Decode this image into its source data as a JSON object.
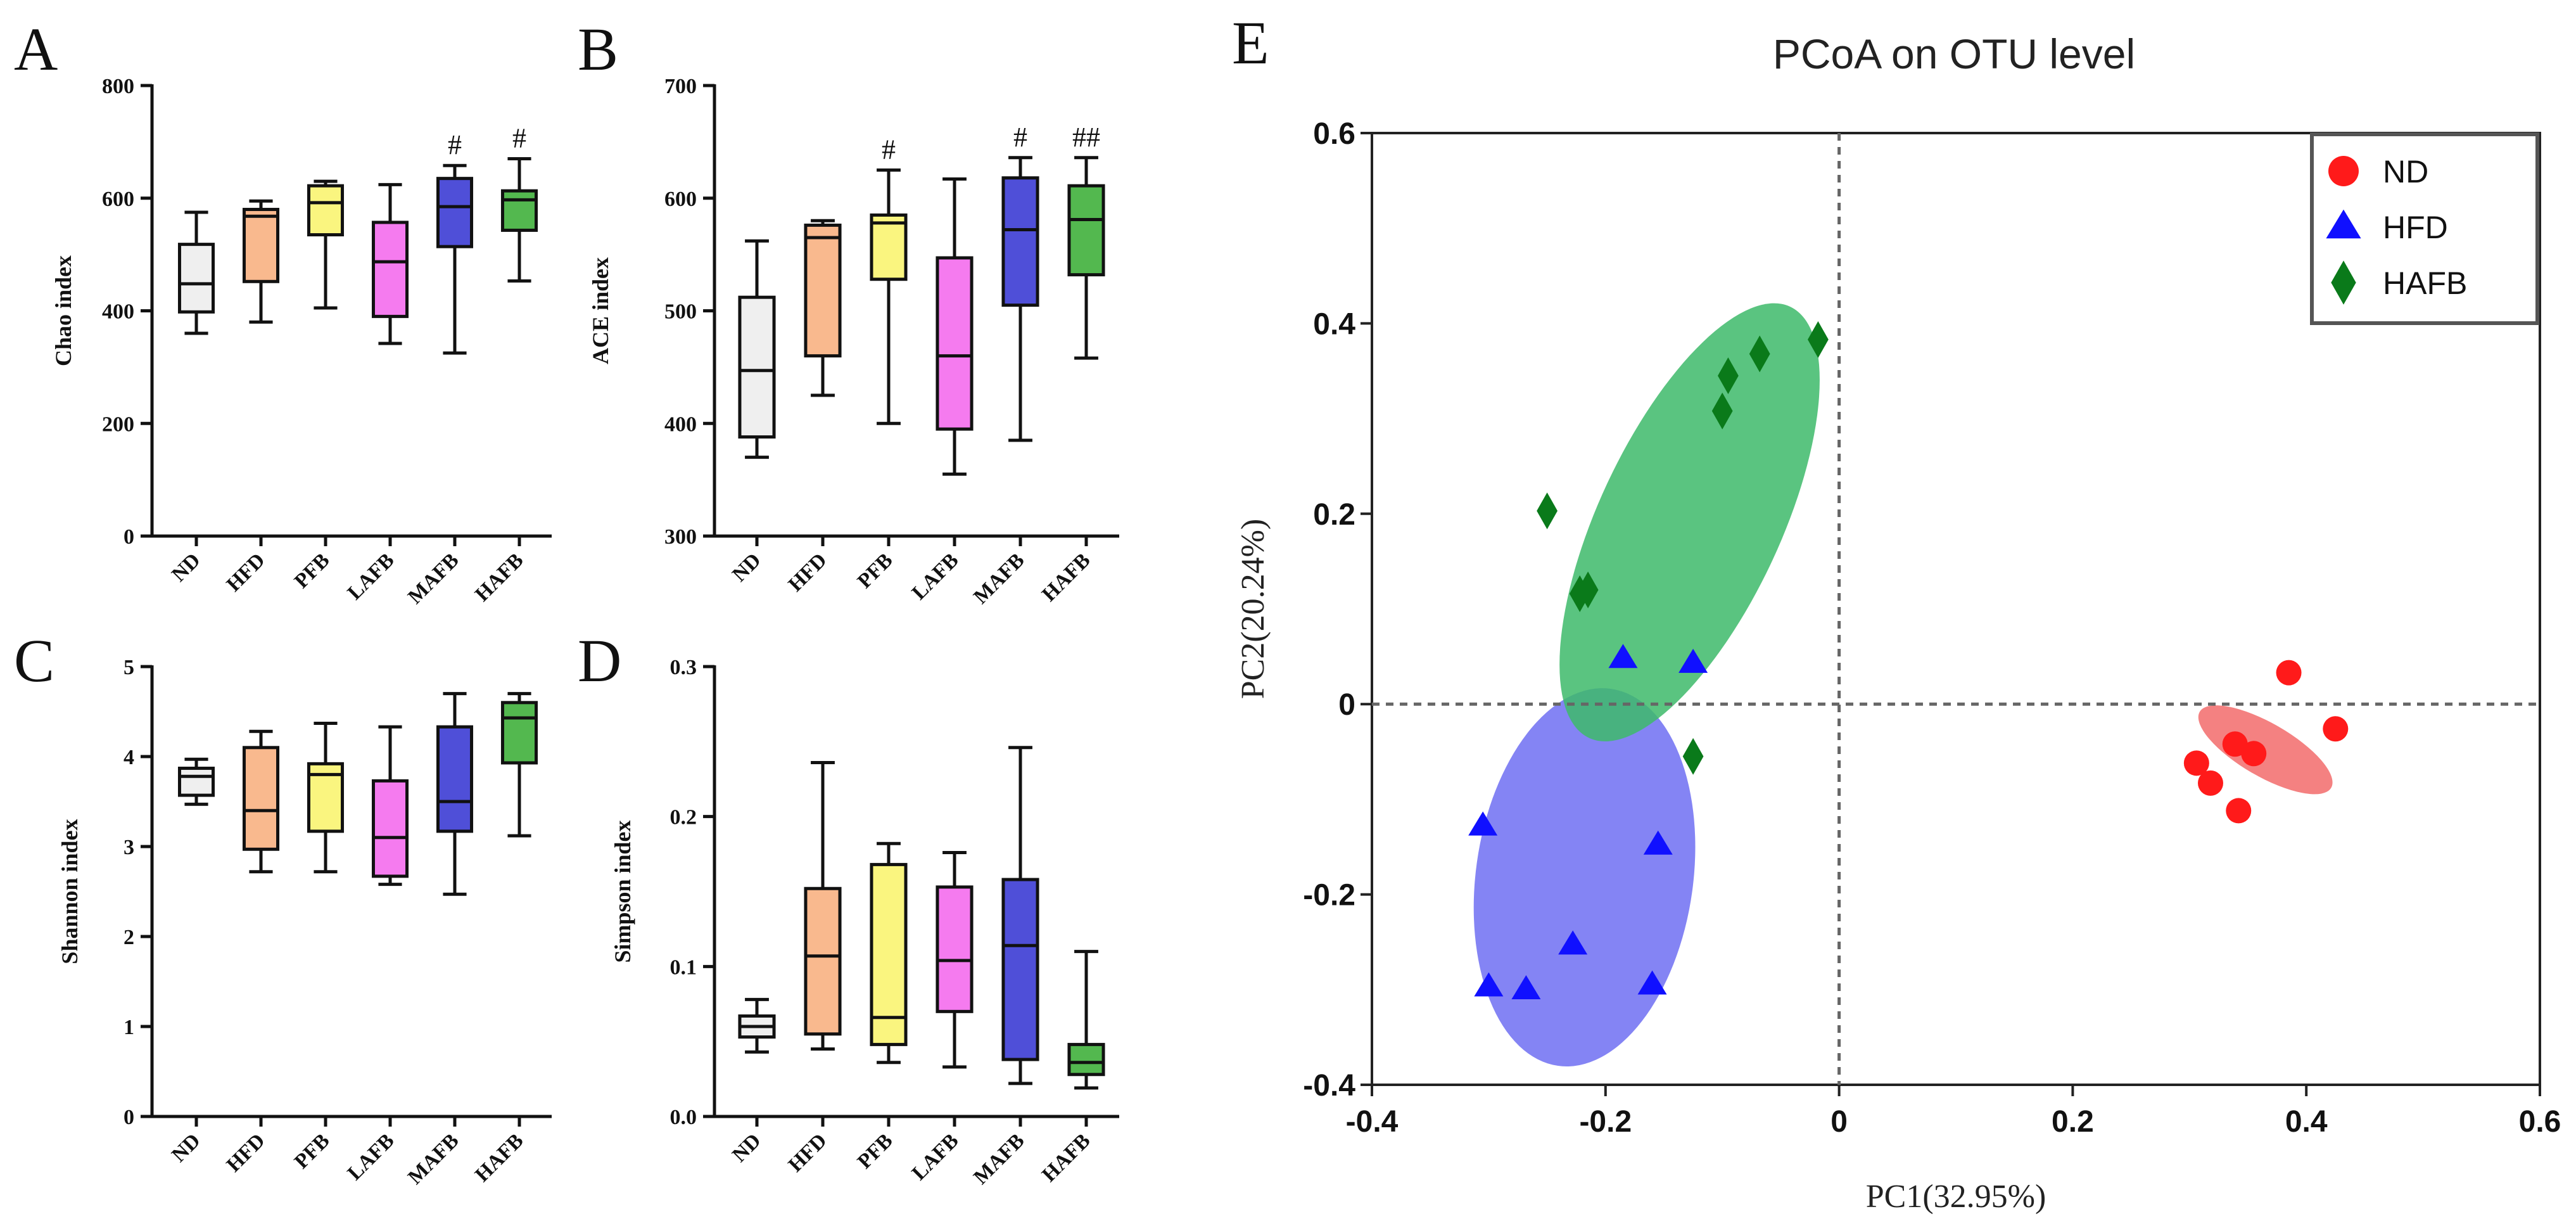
{
  "chart_data": [
    {
      "panel": "A",
      "type": "box",
      "ylabel": "Chao index",
      "categories": [
        "ND",
        "HFD",
        "PFB",
        "LAFB",
        "MAFB",
        "HAFB"
      ],
      "colors": [
        "#efefef",
        "#f9b98e",
        "#faf57f",
        "#f57bef",
        "#4f4fd8",
        "#53b84f"
      ],
      "ylim": [
        0,
        800
      ],
      "yticks": [
        "0",
        "200",
        "400",
        "600",
        "800"
      ],
      "boxes": [
        {
          "min": 360,
          "q1": 398,
          "median": 448,
          "q3": 518,
          "max": 575
        },
        {
          "min": 380,
          "q1": 452,
          "median": 568,
          "q3": 580,
          "max": 595
        },
        {
          "min": 405,
          "q1": 535,
          "median": 592,
          "q3": 622,
          "max": 630
        },
        {
          "min": 342,
          "q1": 390,
          "median": 487,
          "q3": 557,
          "max": 624
        },
        {
          "min": 325,
          "q1": 514,
          "median": 585,
          "q3": 635,
          "max": 658
        },
        {
          "min": 453,
          "q1": 543,
          "median": 597,
          "q3": 613,
          "max": 670
        }
      ],
      "annotations": [
        "",
        "",
        "",
        "",
        "#",
        "#"
      ]
    },
    {
      "panel": "B",
      "type": "box",
      "ylabel": "ACE index",
      "categories": [
        "ND",
        "HFD",
        "PFB",
        "LAFB",
        "MAFB",
        "HAFB"
      ],
      "colors": [
        "#efefef",
        "#f9b98e",
        "#faf57f",
        "#f57bef",
        "#4f4fd8",
        "#53b84f"
      ],
      "ylim": [
        300,
        700
      ],
      "yticks": [
        "300",
        "400",
        "500",
        "600",
        "700"
      ],
      "boxes": [
        {
          "min": 370,
          "q1": 388,
          "median": 447,
          "q3": 512,
          "max": 562
        },
        {
          "min": 425,
          "q1": 460,
          "median": 565,
          "q3": 576,
          "max": 580
        },
        {
          "min": 400,
          "q1": 528,
          "median": 578,
          "q3": 585,
          "max": 625
        },
        {
          "min": 355,
          "q1": 395,
          "median": 460,
          "q3": 547,
          "max": 617
        },
        {
          "min": 385,
          "q1": 505,
          "median": 572,
          "q3": 618,
          "max": 636
        },
        {
          "min": 458,
          "q1": 532,
          "median": 581,
          "q3": 611,
          "max": 636
        }
      ],
      "annotations": [
        "",
        "",
        "#",
        "",
        "#",
        "##"
      ]
    },
    {
      "panel": "C",
      "type": "box",
      "ylabel": "Shannon index",
      "categories": [
        "ND",
        "HFD",
        "PFB",
        "LAFB",
        "MAFB",
        "HAFB"
      ],
      "colors": [
        "#efefef",
        "#f9b98e",
        "#faf57f",
        "#f57bef",
        "#4f4fd8",
        "#53b84f"
      ],
      "ylim": [
        0,
        5
      ],
      "yticks": [
        "0",
        "1",
        "2",
        "3",
        "4",
        "5"
      ],
      "boxes": [
        {
          "min": 3.47,
          "q1": 3.57,
          "median": 3.78,
          "q3": 3.87,
          "max": 3.97
        },
        {
          "min": 2.72,
          "q1": 2.97,
          "median": 3.4,
          "q3": 4.1,
          "max": 4.28
        },
        {
          "min": 2.72,
          "q1": 3.17,
          "median": 3.8,
          "q3": 3.92,
          "max": 4.37
        },
        {
          "min": 2.58,
          "q1": 2.67,
          "median": 3.1,
          "q3": 3.73,
          "max": 4.33
        },
        {
          "min": 2.47,
          "q1": 3.17,
          "median": 3.5,
          "q3": 4.33,
          "max": 4.7
        },
        {
          "min": 3.12,
          "q1": 3.93,
          "median": 4.43,
          "q3": 4.6,
          "max": 4.7
        }
      ],
      "annotations": [
        "",
        "",
        "",
        "",
        "",
        ""
      ]
    },
    {
      "panel": "D",
      "type": "box",
      "ylabel": "Simpson index",
      "categories": [
        "ND",
        "HFD",
        "PFB",
        "LAFB",
        "MAFB",
        "HAFB"
      ],
      "colors": [
        "#efefef",
        "#f9b98e",
        "#faf57f",
        "#f57bef",
        "#4f4fd8",
        "#53b84f"
      ],
      "ylim": [
        0,
        0.3
      ],
      "yticks": [
        "0.0",
        "0.1",
        "0.2",
        "0.3"
      ],
      "boxes": [
        {
          "min": 0.043,
          "q1": 0.053,
          "median": 0.06,
          "q3": 0.067,
          "max": 0.078
        },
        {
          "min": 0.045,
          "q1": 0.055,
          "median": 0.107,
          "q3": 0.152,
          "max": 0.236
        },
        {
          "min": 0.036,
          "q1": 0.048,
          "median": 0.066,
          "q3": 0.168,
          "max": 0.182
        },
        {
          "min": 0.033,
          "q1": 0.07,
          "median": 0.104,
          "q3": 0.153,
          "max": 0.176
        },
        {
          "min": 0.022,
          "q1": 0.038,
          "median": 0.114,
          "q3": 0.158,
          "max": 0.246
        },
        {
          "min": 0.019,
          "q1": 0.028,
          "median": 0.036,
          "q3": 0.048,
          "max": 0.11
        }
      ],
      "annotations": [
        "",
        "",
        "",
        "",
        "",
        ""
      ]
    },
    {
      "panel": "E",
      "type": "scatter",
      "title": "PCoA on OTU level",
      "xlabel": "PC1(32.95%)",
      "ylabel": "PC2(20.24%)",
      "xlim": [
        -0.4,
        0.6
      ],
      "ylim": [
        -0.4,
        0.6
      ],
      "xticks": [
        "-0.4",
        "-0.2",
        "0",
        "0.2",
        "0.4",
        "0.6"
      ],
      "yticks": [
        "-0.4",
        "-0.2",
        "0",
        "0.2",
        "0.4",
        "0.6"
      ],
      "legend_position": "top-right",
      "series": [
        {
          "name": "ND",
          "marker": "circle",
          "color": "#ff1a1a",
          "ellipse_color": "#f26b6b",
          "points": [
            [
              0.385,
              0.033
            ],
            [
              0.425,
              -0.026
            ],
            [
              0.306,
              -0.062
            ],
            [
              0.318,
              -0.083
            ],
            [
              0.342,
              -0.112
            ],
            [
              0.339,
              -0.042
            ],
            [
              0.355,
              -0.052
            ]
          ],
          "ellipse": {
            "cx": 0.365,
            "cy": -0.048,
            "rx": 0.065,
            "ry": 0.028,
            "angle_deg": 30
          }
        },
        {
          "name": "HFD",
          "marker": "triangle",
          "color": "#1010ff",
          "ellipse_color": "#6f6ff2",
          "points": [
            [
              -0.185,
              0.048
            ],
            [
              -0.125,
              0.043
            ],
            [
              -0.305,
              -0.128
            ],
            [
              -0.155,
              -0.148
            ],
            [
              -0.228,
              -0.253
            ],
            [
              -0.3,
              -0.297
            ],
            [
              -0.268,
              -0.3
            ],
            [
              -0.16,
              -0.295
            ]
          ],
          "ellipse": {
            "cx": -0.218,
            "cy": -0.182,
            "rx": 0.093,
            "ry": 0.2,
            "angle_deg": 8
          }
        },
        {
          "name": "HAFB",
          "marker": "diamond",
          "color": "#0a7a1a",
          "ellipse_color": "#3dba6a",
          "points": [
            [
              -0.018,
              0.383
            ],
            [
              -0.068,
              0.368
            ],
            [
              -0.095,
              0.345
            ],
            [
              -0.1,
              0.308
            ],
            [
              -0.25,
              0.203
            ],
            [
              -0.215,
              0.12
            ],
            [
              -0.222,
              0.116
            ],
            [
              -0.125,
              -0.055
            ]
          ],
          "ellipse": {
            "cx": -0.128,
            "cy": 0.191,
            "rx": 0.078,
            "ry": 0.25,
            "angle_deg": 25
          }
        }
      ]
    }
  ]
}
